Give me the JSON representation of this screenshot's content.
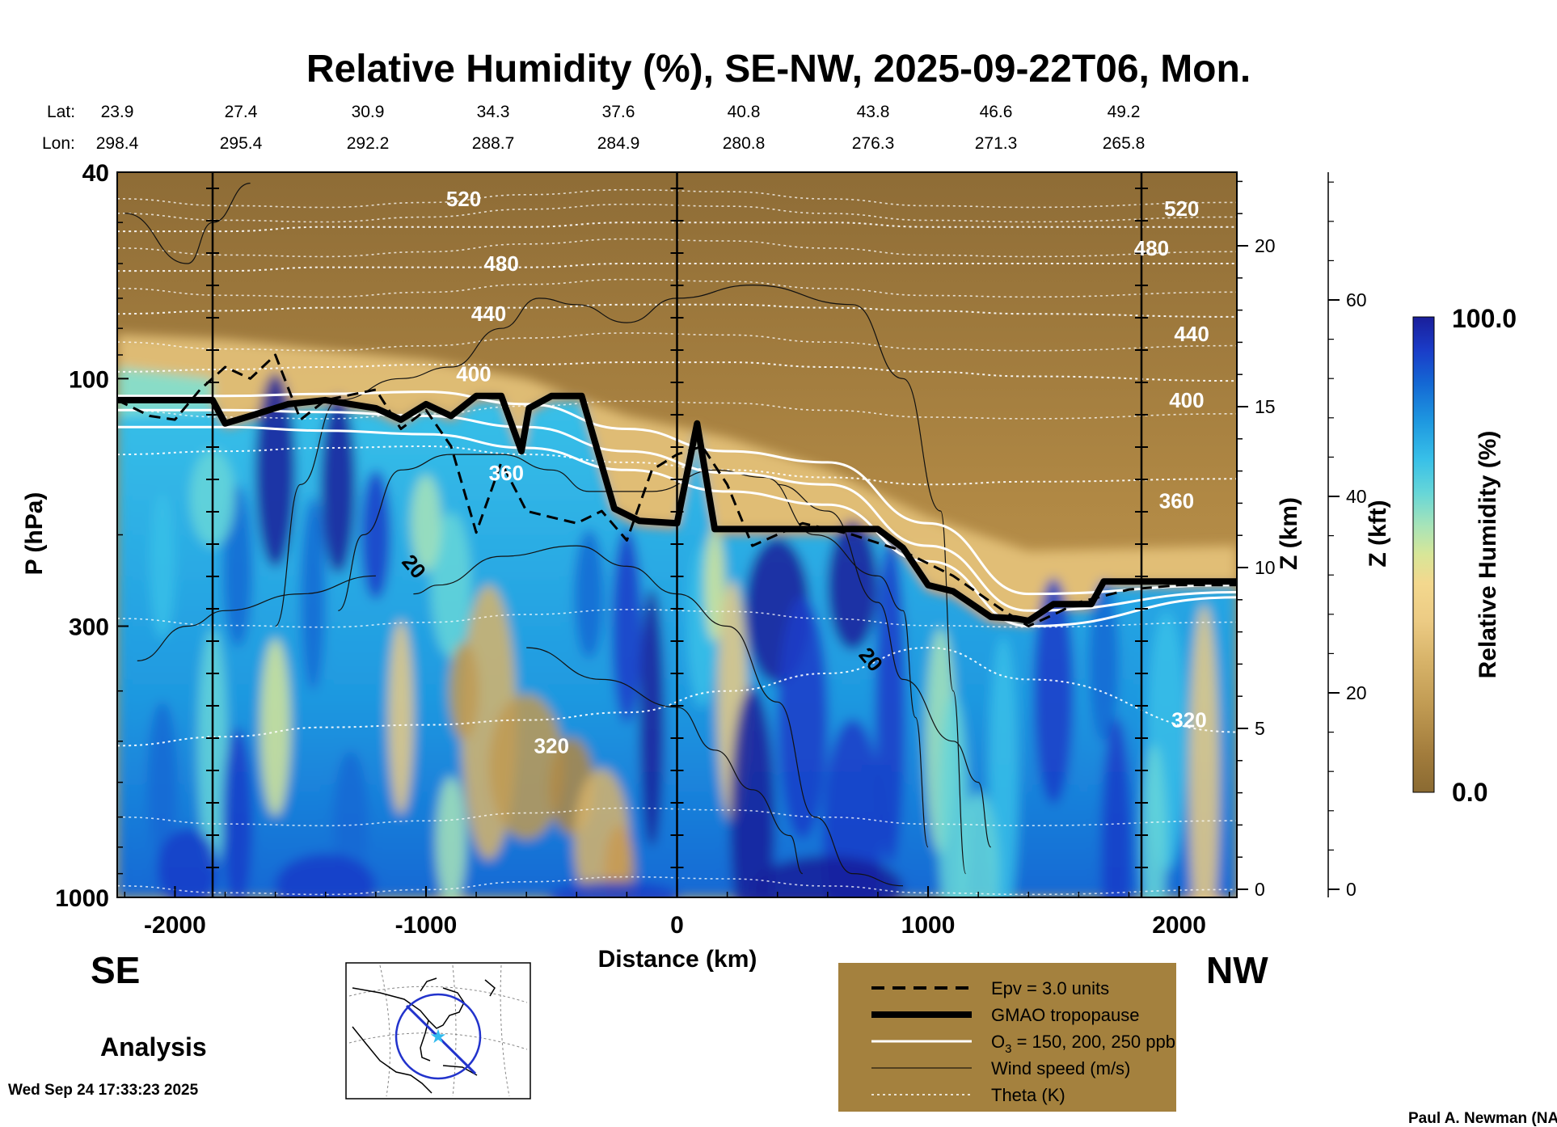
{
  "chart_data": {
    "type": "heatmap",
    "title": "Relative Humidity (%), SE-NW, 2025-09-22T06, Mon.",
    "xlabel": "Distance (km)",
    "ylabel": "P (hPa)",
    "xlim": [
      -2230,
      2230
    ],
    "ylim": [
      1000,
      40
    ],
    "x_ticks": [
      -2000,
      -1000,
      0,
      1000,
      2000
    ],
    "x_tick_labels": [
      "-2000",
      "-1000",
      "0",
      "1000",
      "2000"
    ],
    "y_ticks": [
      40,
      100,
      300,
      1000
    ],
    "y_tick_labels": [
      "40",
      "100",
      "300",
      "1000"
    ],
    "z_km_label": "Z (km)",
    "z_km_ticks": [
      0,
      5,
      10,
      15,
      20
    ],
    "z_km_tick_labels": [
      "0",
      "5",
      "10",
      "15",
      "20"
    ],
    "z_kft_label": "Z (kft)",
    "z_kft_ticks": [
      0,
      20,
      40,
      60
    ],
    "z_kft_tick_labels": [
      "0",
      "20",
      "40",
      "60"
    ],
    "lat_label": "Lat:",
    "lon_label": "Lon:",
    "lat_values": [
      "23.9",
      "27.4",
      "30.9",
      "34.3",
      "37.6",
      "40.8",
      "43.8",
      "46.6",
      "49.2"
    ],
    "lon_values": [
      "298.4",
      "295.4",
      "292.2",
      "288.7",
      "284.9",
      "280.8",
      "276.3",
      "271.3",
      "265.8"
    ],
    "left_end": "SE",
    "right_end": "NW",
    "analysis_label": "Analysis",
    "timestamp": "Wed Sep 24 17:33:23 2025",
    "credit": "Paul A. Newman (NASA",
    "colorbar": {
      "label": "Relative Humidity (%)",
      "max_label": "100.0",
      "min_label": "0.0",
      "range": [
        0,
        100
      ],
      "colors": [
        "#8a6a32",
        "#a27c3c",
        "#c09a52",
        "#d8b46a",
        "#eccb84",
        "#f3d88e",
        "#d8e698",
        "#a8e4b8",
        "#66d6d8",
        "#38c0e8",
        "#1e98e0",
        "#1468d4",
        "#1a3cc8",
        "#1a1e9a"
      ]
    },
    "legend": {
      "placement": "bottom-center",
      "items": [
        {
          "label": "Epv = 3.0 units",
          "style": "dashed-black"
        },
        {
          "label": "GMAO tropopause",
          "style": "thick-black"
        },
        {
          "label": "O",
          "sub": "3",
          "suffix": " = 150, 200, 250 ppb",
          "style": "white"
        },
        {
          "label": "Wind speed (m/s)",
          "style": "thin-black"
        },
        {
          "label": "Theta (K)",
          "style": "dotted-white"
        }
      ]
    },
    "theta_contours_K": [
      {
        "value": 520,
        "p": [
          52,
          52,
          51,
          51,
          51,
          50,
          50,
          50,
          51,
          51,
          51
        ]
      },
      {
        "value": 480,
        "p": [
          62,
          62,
          61,
          61,
          61,
          60,
          60,
          60,
          60,
          60,
          60
        ]
      },
      {
        "value": 440,
        "p": [
          75,
          74,
          73,
          73,
          73,
          72,
          72,
          73,
          74,
          75,
          76
        ]
      },
      {
        "value": 400,
        "p": [
          97,
          96,
          95,
          94,
          94,
          93,
          93,
          95,
          97,
          99,
          101
        ]
      },
      {
        "value": 360,
        "p": [
          140,
          138,
          136,
          135,
          140,
          145,
          150,
          155,
          160,
          158,
          156
        ]
      },
      {
        "value": 320,
        "p": [
          510,
          490,
          470,
          465,
          455,
          440,
          400,
          370,
          330,
          380,
          480
        ]
      }
    ],
    "theta_labels": [
      {
        "text": "520",
        "x": -850,
        "p": 45
      },
      {
        "text": "480",
        "x": -700,
        "p": 60
      },
      {
        "text": "440",
        "x": -750,
        "p": 75
      },
      {
        "text": "400",
        "x": -810,
        "p": 98
      },
      {
        "text": "360",
        "x": -680,
        "p": 152
      },
      {
        "text": "320",
        "x": -500,
        "p": 510
      },
      {
        "text": "520",
        "x": 2010,
        "p": 47
      },
      {
        "text": "480",
        "x": 1890,
        "p": 56
      },
      {
        "text": "440",
        "x": 2050,
        "p": 82
      },
      {
        "text": "400",
        "x": 2030,
        "p": 110
      },
      {
        "text": "360",
        "x": 1990,
        "p": 172
      },
      {
        "text": "320",
        "x": 2040,
        "p": 455
      }
    ],
    "wind_labels": [
      {
        "text": "20",
        "x": -1070,
        "p": 235
      },
      {
        "text": "20",
        "x": 750,
        "p": 355
      }
    ],
    "tropopause_hPa": {
      "x": [
        -2230,
        -1850,
        -1800,
        -1700,
        -1550,
        -1400,
        -1200,
        -1100,
        -1000,
        -900,
        -800,
        -700,
        -620,
        -590,
        -500,
        -380,
        -250,
        -150,
        0,
        80,
        150,
        400,
        800,
        900,
        1000,
        1100,
        1250,
        1350,
        1400,
        1500,
        1650,
        1700,
        1850,
        2230
      ],
      "p": [
        110,
        110,
        122,
        118,
        112,
        110,
        114,
        120,
        112,
        118,
        108,
        108,
        138,
        114,
        108,
        108,
        178,
        188,
        190,
        122,
        195,
        195,
        195,
        212,
        250,
        257,
        288,
        290,
        293,
        272,
        272,
        246,
        246,
        246
      ]
    },
    "epv_3pvu_hPa": {
      "x": [
        -2230,
        -2100,
        -2000,
        -1900,
        -1800,
        -1700,
        -1600,
        -1500,
        -1400,
        -1200,
        -1100,
        -1000,
        -900,
        -800,
        -700,
        -600,
        -500,
        -400,
        -300,
        -200,
        -100,
        0,
        100,
        200,
        300,
        500,
        700,
        900,
        1100,
        1300,
        1400,
        1500,
        1600,
        1800,
        2000,
        2230
      ],
      "p": [
        110,
        118,
        120,
        105,
        95,
        100,
        90,
        120,
        110,
        105,
        125,
        115,
        135,
        198,
        145,
        180,
        185,
        190,
        180,
        205,
        150,
        140,
        135,
        160,
        210,
        190,
        200,
        215,
        240,
        280,
        300,
        285,
        270,
        255,
        250,
        250
      ]
    },
    "ozone_ppb": [
      {
        "value": 150,
        "p": [
          108,
          108,
          107,
          106,
          112,
          125,
          138,
          145,
          190,
          260,
          250
        ]
      },
      {
        "value": 200,
        "p": [
          115,
          115,
          116,
          118,
          124,
          138,
          152,
          160,
          210,
          280,
          258
        ]
      },
      {
        "value": 250,
        "p": [
          124,
          124,
          126,
          128,
          136,
          150,
          165,
          175,
          225,
          300,
          264
        ]
      }
    ],
    "inset_map": {
      "center": "eastern North America",
      "track": "SE-NW cross section"
    }
  }
}
